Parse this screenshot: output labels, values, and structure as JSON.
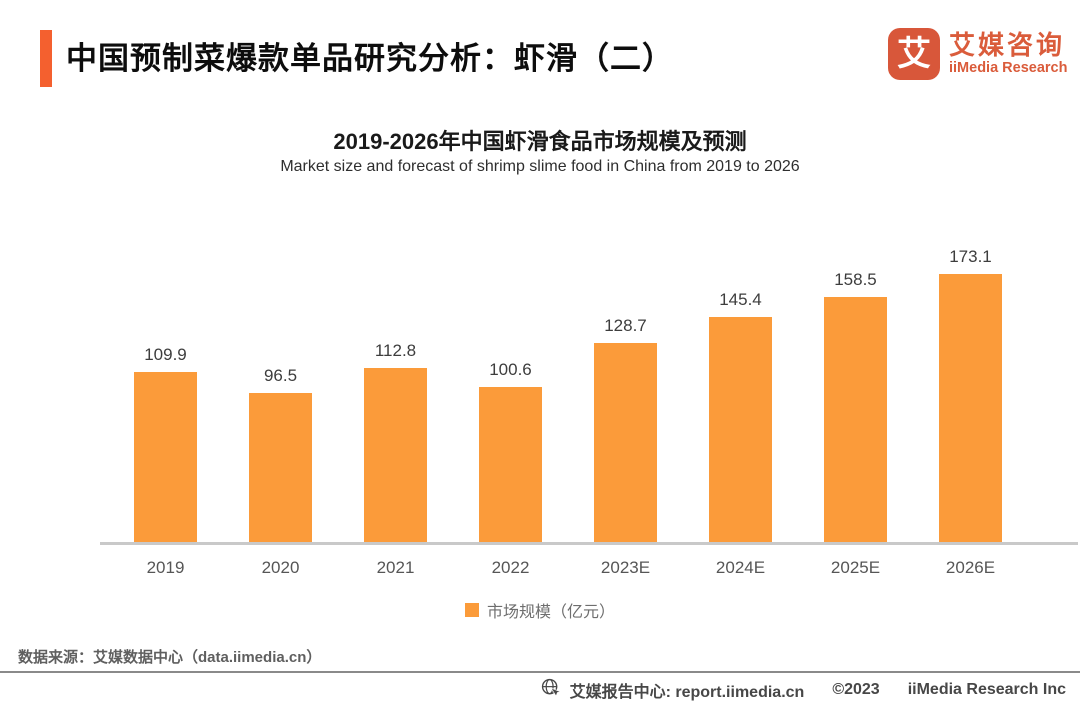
{
  "header": {
    "title": "中国预制菜爆款单品研究分析：虾滑（二）",
    "logo": {
      "glyph": "艾",
      "name_cn": "艾媒咨询",
      "name_en": "iiMedia Research",
      "brand_color": "#D8573A",
      "accent_color": "#F4602F"
    }
  },
  "chart_data": {
    "type": "bar",
    "title": "2019-2026年中国虾滑食品市场规模及预测",
    "subtitle": "Market size and forecast of shrimp slime food in China from 2019 to 2026",
    "categories": [
      "2019",
      "2020",
      "2021",
      "2022",
      "2023E",
      "2024E",
      "2025E",
      "2026E"
    ],
    "values": [
      109.9,
      96.5,
      112.8,
      100.6,
      128.7,
      145.4,
      158.5,
      173.1
    ],
    "series_name": "市场规模（亿元）",
    "unit": "亿元",
    "legend": [
      "市场规模（亿元）"
    ],
    "legend_position": "bottom",
    "bar_color": "#FB9B3A",
    "ylim": [
      0,
      200
    ],
    "grid": false,
    "xlabel": "",
    "ylabel": ""
  },
  "footer": {
    "source": "数据来源：艾媒数据中心（data.iimedia.cn）",
    "report_center": "艾媒报告中心: report.iimedia.cn",
    "copyright": "©2023",
    "company": "iiMedia Research Inc"
  }
}
